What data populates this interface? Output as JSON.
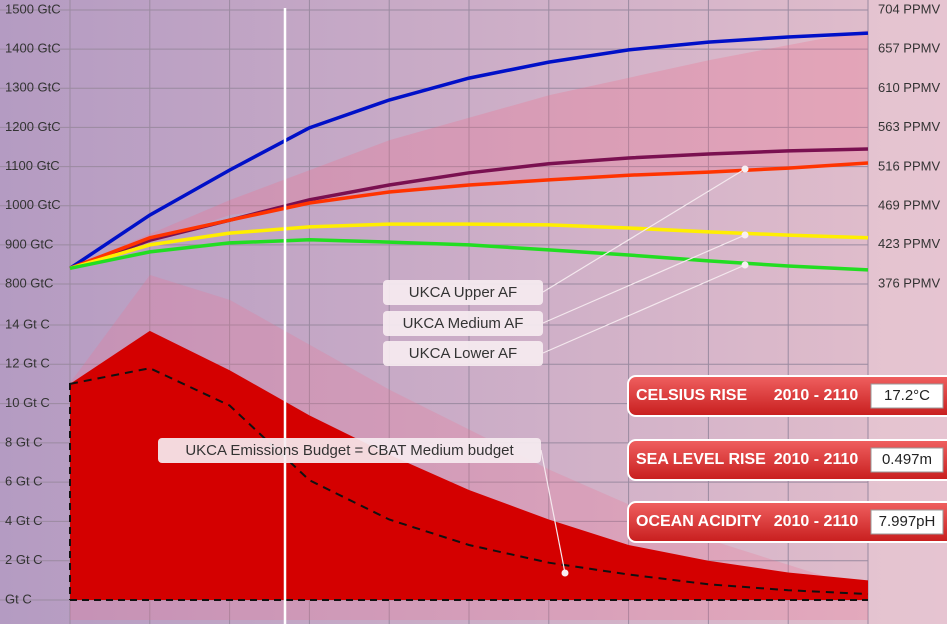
{
  "chart_data": [
    {
      "type": "line",
      "categories": [
        null,
        null,
        null,
        null,
        null,
        null,
        null,
        null,
        null,
        null,
        null
      ],
      "ylim": [
        800,
        1500
      ],
      "yticks": [
        {
          "value": 800,
          "label": "800 GtC"
        },
        {
          "value": 900,
          "label": "900 GtC"
        },
        {
          "value": 1000,
          "label": "1000 GtC"
        },
        {
          "value": 1100,
          "label": "1100 GtC"
        },
        {
          "value": 1200,
          "label": "1200 GtC"
        },
        {
          "value": 1300,
          "label": "1300 GtC"
        },
        {
          "value": 1400,
          "label": "1400 GtC"
        },
        {
          "value": 1500,
          "label": "1500 GtC"
        }
      ],
      "y2lim": [
        376,
        704
      ],
      "y2ticks": [
        {
          "value": 376,
          "label": "376 PPMV"
        },
        {
          "value": 423,
          "label": "423 PPMV"
        },
        {
          "value": 469,
          "label": "469 PPMV"
        },
        {
          "value": 516,
          "label": "516 PPMV"
        },
        {
          "value": 563,
          "label": "563 PPMV"
        },
        {
          "value": 610,
          "label": "610 PPMV"
        },
        {
          "value": 657,
          "label": "657 PPMV"
        },
        {
          "value": 704,
          "label": "704 PPMV"
        }
      ],
      "grid": true,
      "series": [
        {
          "color": "#0010c8",
          "values": [
            840,
            976,
            1091,
            1199,
            1270,
            1326,
            1367,
            1398,
            1418,
            1431,
            1441
          ]
        },
        {
          "color": "#7a1050",
          "values": [
            840,
            912,
            963,
            1015,
            1053,
            1084,
            1107,
            1122,
            1132,
            1140,
            1145
          ]
        },
        {
          "color": "#ff3300",
          "values": [
            840,
            918,
            963,
            1007,
            1035,
            1053,
            1066,
            1078,
            1086,
            1096,
            1109
          ]
        },
        {
          "color": "#ffee00",
          "values": [
            840,
            900,
            930,
            946,
            953,
            953,
            951,
            943,
            933,
            925,
            918
          ]
        },
        {
          "color": "#22dd22",
          "values": [
            840,
            882,
            905,
            913,
            907,
            900,
            887,
            874,
            859,
            846,
            836
          ]
        }
      ],
      "annotations": [
        "UKCA Upper AF",
        "UKCA Medium AF",
        "UKCA Lower AF"
      ]
    },
    {
      "type": "area",
      "categories": [
        null,
        null,
        null,
        null,
        null,
        null,
        null,
        null,
        null,
        null,
        null
      ],
      "ylim": [
        0,
        14
      ],
      "yticks": [
        {
          "value": 0,
          "label": "Gt C"
        },
        {
          "value": 2,
          "label": "2 Gt C"
        },
        {
          "value": 4,
          "label": "4 Gt C"
        },
        {
          "value": 6,
          "label": "6 Gt C"
        },
        {
          "value": 8,
          "label": "8 Gt C"
        },
        {
          "value": 10,
          "label": "10 Gt C"
        },
        {
          "value": 12,
          "label": "12 Gt C"
        },
        {
          "value": 14,
          "label": "14 Gt C"
        }
      ],
      "grid": true,
      "series": [
        {
          "color": "#d40000",
          "values": [
            11.0,
            13.7,
            11.7,
            9.4,
            7.4,
            5.6,
            4.1,
            2.8,
            2.0,
            1.4,
            1.0
          ]
        },
        {
          "color": "#111111",
          "dashed": true,
          "values": [
            11.0,
            11.8,
            9.9,
            6.1,
            4.1,
            2.8,
            1.9,
            1.3,
            0.8,
            0.5,
            0.3
          ]
        }
      ],
      "annotations": [
        "UKCA Emissions Budget = CBAT Medium budget"
      ]
    }
  ],
  "panels": [
    {
      "label": "CELSIUS RISE",
      "period": "2010 - 2110",
      "value": "17.2°C"
    },
    {
      "label": "SEA LEVEL RISE",
      "period": "2010 - 2110",
      "value": "0.497m"
    },
    {
      "label": "OCEAN ACIDITY",
      "period": "2010 - 2110",
      "value": "7.997pH"
    }
  ]
}
